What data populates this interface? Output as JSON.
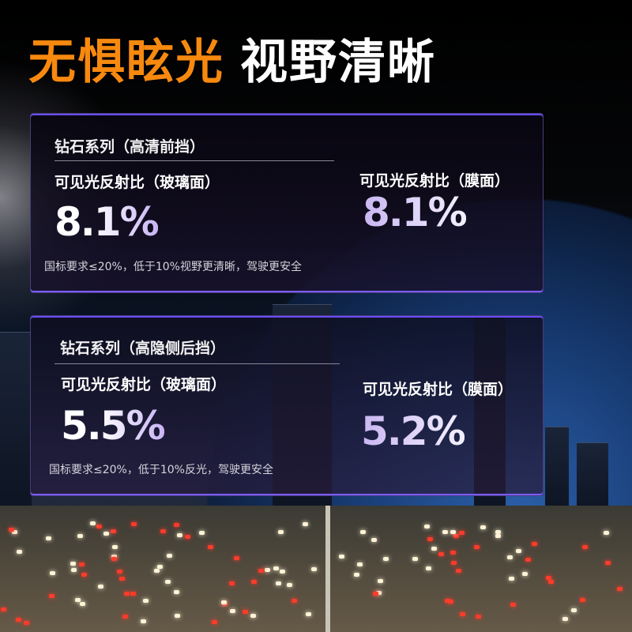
{
  "headline": {
    "part1": "无惧眩光",
    "part2": "视野清晰"
  },
  "colors": {
    "accent": "#f7890f",
    "value_gradient_end": "#c8b4f4",
    "card_border": "#6a4cff"
  },
  "cards": [
    {
      "series": "钻石系列（高清前挡）",
      "glass_label": "可见光反射比（玻璃面）",
      "glass_value": "8.1%",
      "film_label": "可见光反射比（膜面）",
      "film_value": "8.1%",
      "note": "国标要求≤20%，低于10%视野更清晰，驾驶更安全"
    },
    {
      "series": "钻石系列（高隐侧后挡）",
      "glass_label": "可见光反射比（玻璃面）",
      "glass_value": "5.5%",
      "film_label": "可见光反射比（膜面）",
      "film_value": "5.2%",
      "note": "国标要求≤20%，低于10%反光，驾驶更安全"
    }
  ]
}
